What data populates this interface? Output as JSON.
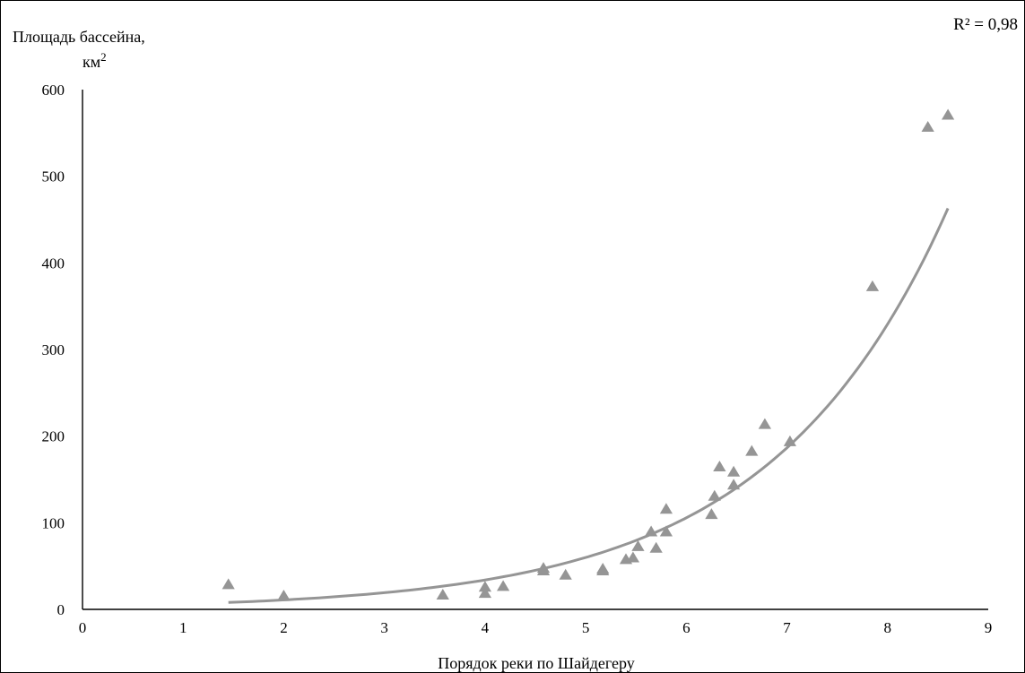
{
  "chart_data": {
    "type": "scatter",
    "ylabel_line1": "Площадь бассейна,",
    "ylabel_line2": "км",
    "ylabel_sup": "2",
    "xlabel": "Порядок реки по Шайдегеру",
    "annotation": "R² = 0,98",
    "xlim": [
      0,
      9
    ],
    "ylim": [
      0,
      600
    ],
    "x_ticks": [
      0,
      1,
      2,
      3,
      4,
      5,
      6,
      7,
      8,
      9
    ],
    "y_ticks": [
      0,
      100,
      200,
      300,
      400,
      500,
      600
    ],
    "grid": false,
    "marker_color": "#959595",
    "trend_color": "#959595",
    "points": [
      {
        "x": 1.45,
        "y": 28
      },
      {
        "x": 2.0,
        "y": 15
      },
      {
        "x": 3.58,
        "y": 16
      },
      {
        "x": 4.0,
        "y": 18
      },
      {
        "x": 4.0,
        "y": 25
      },
      {
        "x": 4.18,
        "y": 26
      },
      {
        "x": 4.58,
        "y": 44
      },
      {
        "x": 4.58,
        "y": 47
      },
      {
        "x": 4.8,
        "y": 39
      },
      {
        "x": 5.17,
        "y": 44
      },
      {
        "x": 5.17,
        "y": 46
      },
      {
        "x": 5.4,
        "y": 57
      },
      {
        "x": 5.47,
        "y": 59
      },
      {
        "x": 5.52,
        "y": 72
      },
      {
        "x": 5.65,
        "y": 89
      },
      {
        "x": 5.7,
        "y": 70
      },
      {
        "x": 5.8,
        "y": 89
      },
      {
        "x": 5.8,
        "y": 115
      },
      {
        "x": 6.25,
        "y": 109
      },
      {
        "x": 6.28,
        "y": 130
      },
      {
        "x": 6.33,
        "y": 164
      },
      {
        "x": 6.47,
        "y": 143
      },
      {
        "x": 6.47,
        "y": 158
      },
      {
        "x": 6.65,
        "y": 182
      },
      {
        "x": 6.78,
        "y": 213
      },
      {
        "x": 7.03,
        "y": 193
      },
      {
        "x": 7.85,
        "y": 372
      },
      {
        "x": 8.4,
        "y": 556
      },
      {
        "x": 8.6,
        "y": 570
      }
    ],
    "trend": {
      "type": "exponential",
      "a": 3.5,
      "b": 0.568,
      "x_range": [
        1.45,
        8.6
      ],
      "r2": 0.98
    }
  }
}
